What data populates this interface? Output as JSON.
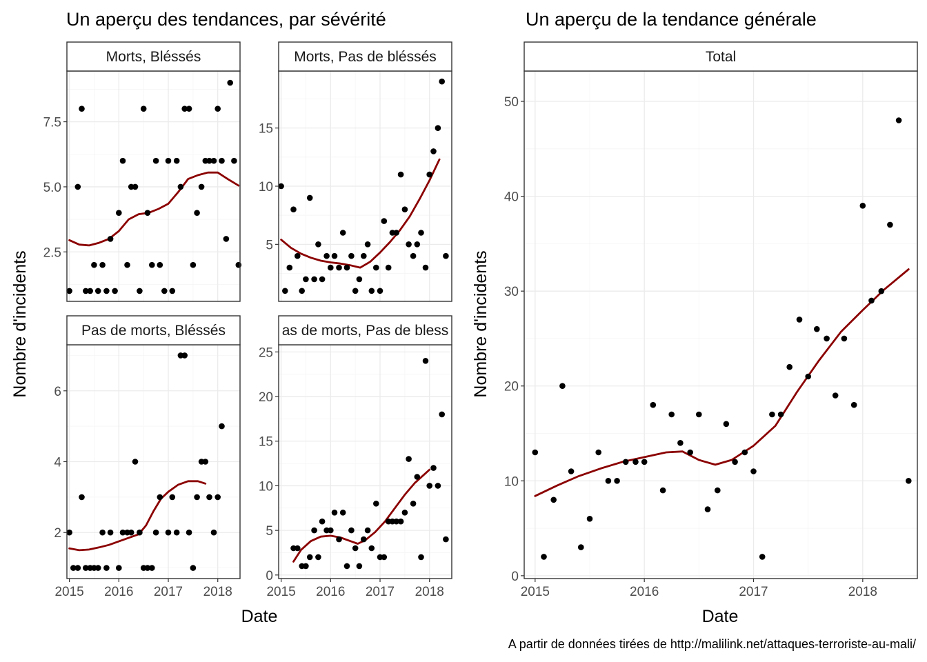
{
  "left_title": "Un aperçu des tendances, par sévérité",
  "right_title": "Un aperçu de la tendance générale",
  "left_xlabel": "Date",
  "left_ylabel": "Nombre d'incidents",
  "right_xlabel": "Date",
  "right_ylabel": "Nombre d'incidents",
  "caption": "A partir de données tirées de http://malilink.net/attaques-terroriste-au-mali/",
  "colors": {
    "points": "#000000",
    "trend": "#8b0000",
    "grid": "#ebebeb",
    "border": "#333333"
  },
  "chart_data": [
    {
      "type": "scatter",
      "facet": "Morts, Bléssés",
      "x_ticks": [
        "2015",
        "2016",
        "2017",
        "2018"
      ],
      "y_ticks": [
        2.5,
        5.0,
        7.5
      ],
      "y_tick_labels": [
        "2.5",
        "5.0",
        "7.5"
      ],
      "xlim": [
        2014.95,
        2018.45
      ],
      "ylim": [
        0.6,
        9.45
      ],
      "points": [
        [
          2015.0,
          1
        ],
        [
          2015.17,
          5
        ],
        [
          2015.25,
          8
        ],
        [
          2015.33,
          1
        ],
        [
          2015.42,
          1
        ],
        [
          2015.5,
          2
        ],
        [
          2015.58,
          1
        ],
        [
          2015.67,
          2
        ],
        [
          2015.75,
          1
        ],
        [
          2015.83,
          3
        ],
        [
          2015.92,
          1
        ],
        [
          2016.0,
          4
        ],
        [
          2016.08,
          6
        ],
        [
          2016.17,
          2
        ],
        [
          2016.25,
          5
        ],
        [
          2016.33,
          5
        ],
        [
          2016.42,
          1
        ],
        [
          2016.5,
          8
        ],
        [
          2016.58,
          4
        ],
        [
          2016.67,
          2
        ],
        [
          2016.75,
          6
        ],
        [
          2016.83,
          2
        ],
        [
          2016.92,
          1
        ],
        [
          2017.0,
          6
        ],
        [
          2017.08,
          1
        ],
        [
          2017.17,
          6
        ],
        [
          2017.25,
          5
        ],
        [
          2017.33,
          8
        ],
        [
          2017.42,
          8
        ],
        [
          2017.5,
          2
        ],
        [
          2017.58,
          4
        ],
        [
          2017.67,
          5
        ],
        [
          2017.75,
          6
        ],
        [
          2017.83,
          6
        ],
        [
          2017.92,
          6
        ],
        [
          2018.0,
          8
        ],
        [
          2018.08,
          6
        ],
        [
          2018.17,
          3
        ],
        [
          2018.25,
          9
        ],
        [
          2018.33,
          6
        ],
        [
          2018.42,
          2
        ]
      ],
      "trend": [
        [
          2015.0,
          2.95
        ],
        [
          2015.2,
          2.78
        ],
        [
          2015.4,
          2.75
        ],
        [
          2015.6,
          2.85
        ],
        [
          2015.8,
          3.0
        ],
        [
          2016.0,
          3.3
        ],
        [
          2016.2,
          3.75
        ],
        [
          2016.4,
          3.95
        ],
        [
          2016.6,
          4.0
        ],
        [
          2016.8,
          4.15
        ],
        [
          2017.0,
          4.35
        ],
        [
          2017.2,
          4.8
        ],
        [
          2017.4,
          5.3
        ],
        [
          2017.6,
          5.45
        ],
        [
          2017.8,
          5.55
        ],
        [
          2018.0,
          5.55
        ],
        [
          2018.2,
          5.3
        ],
        [
          2018.42,
          5.05
        ]
      ]
    },
    {
      "type": "scatter",
      "facet": "Morts, Pas de bléssés",
      "x_ticks": [
        "2015",
        "2016",
        "2017",
        "2018"
      ],
      "y_ticks": [
        5,
        10,
        15
      ],
      "y_tick_labels": [
        "5",
        "10",
        "15"
      ],
      "xlim": [
        2014.95,
        2018.45
      ],
      "ylim": [
        0.1,
        19.9
      ],
      "points": [
        [
          2015.0,
          10
        ],
        [
          2015.08,
          1
        ],
        [
          2015.17,
          3
        ],
        [
          2015.25,
          8
        ],
        [
          2015.33,
          4
        ],
        [
          2015.42,
          1
        ],
        [
          2015.5,
          2
        ],
        [
          2015.58,
          9
        ],
        [
          2015.67,
          2
        ],
        [
          2015.75,
          5
        ],
        [
          2015.83,
          2
        ],
        [
          2015.92,
          4
        ],
        [
          2016.0,
          3
        ],
        [
          2016.08,
          4
        ],
        [
          2016.17,
          3
        ],
        [
          2016.25,
          6
        ],
        [
          2016.33,
          3
        ],
        [
          2016.42,
          4
        ],
        [
          2016.5,
          1
        ],
        [
          2016.58,
          2
        ],
        [
          2016.67,
          4
        ],
        [
          2016.75,
          5
        ],
        [
          2016.83,
          1
        ],
        [
          2016.92,
          3
        ],
        [
          2017.0,
          1
        ],
        [
          2017.08,
          7
        ],
        [
          2017.17,
          3
        ],
        [
          2017.25,
          6
        ],
        [
          2017.33,
          6
        ],
        [
          2017.42,
          11
        ],
        [
          2017.5,
          8
        ],
        [
          2017.58,
          5
        ],
        [
          2017.67,
          4
        ],
        [
          2017.75,
          5
        ],
        [
          2017.83,
          6
        ],
        [
          2017.92,
          3
        ],
        [
          2018.0,
          11
        ],
        [
          2018.08,
          13
        ],
        [
          2018.17,
          15
        ],
        [
          2018.25,
          19
        ],
        [
          2018.33,
          4
        ]
      ],
      "trend": [
        [
          2015.0,
          5.4
        ],
        [
          2015.2,
          4.7
        ],
        [
          2015.4,
          4.2
        ],
        [
          2015.6,
          3.85
        ],
        [
          2015.8,
          3.6
        ],
        [
          2016.0,
          3.45
        ],
        [
          2016.2,
          3.35
        ],
        [
          2016.4,
          3.2
        ],
        [
          2016.6,
          3.0
        ],
        [
          2016.8,
          3.5
        ],
        [
          2017.0,
          4.3
        ],
        [
          2017.2,
          5.2
        ],
        [
          2017.4,
          6.2
        ],
        [
          2017.6,
          7.4
        ],
        [
          2017.8,
          8.9
        ],
        [
          2018.0,
          10.5
        ],
        [
          2018.2,
          12.3
        ]
      ]
    },
    {
      "type": "scatter",
      "facet": "Pas de morts, Bléssés",
      "x_ticks": [
        "2015",
        "2016",
        "2017",
        "2018"
      ],
      "y_ticks": [
        2,
        4,
        6
      ],
      "y_tick_labels": [
        "2",
        "4",
        "6"
      ],
      "xlim": [
        2014.95,
        2018.45
      ],
      "ylim": [
        0.7,
        7.3
      ],
      "points": [
        [
          2015.0,
          2
        ],
        [
          2015.08,
          1
        ],
        [
          2015.17,
          1
        ],
        [
          2015.25,
          3
        ],
        [
          2015.33,
          1
        ],
        [
          2015.42,
          1
        ],
        [
          2015.5,
          1
        ],
        [
          2015.58,
          1
        ],
        [
          2015.67,
          2
        ],
        [
          2015.75,
          1
        ],
        [
          2015.83,
          2
        ],
        [
          2016.0,
          1
        ],
        [
          2016.08,
          2
        ],
        [
          2016.17,
          2
        ],
        [
          2016.25,
          2
        ],
        [
          2016.33,
          4
        ],
        [
          2016.42,
          2
        ],
        [
          2016.5,
          1
        ],
        [
          2016.58,
          1
        ],
        [
          2016.67,
          1
        ],
        [
          2016.75,
          2
        ],
        [
          2016.83,
          3
        ],
        [
          2017.0,
          2
        ],
        [
          2017.08,
          3
        ],
        [
          2017.17,
          2
        ],
        [
          2017.25,
          7
        ],
        [
          2017.33,
          7
        ],
        [
          2017.42,
          2
        ],
        [
          2017.5,
          1
        ],
        [
          2017.58,
          3
        ],
        [
          2017.67,
          4
        ],
        [
          2017.75,
          4
        ],
        [
          2017.83,
          3
        ],
        [
          2017.92,
          2
        ],
        [
          2018.0,
          3
        ],
        [
          2018.08,
          5
        ]
      ],
      "trend": [
        [
          2015.0,
          1.55
        ],
        [
          2015.2,
          1.5
        ],
        [
          2015.4,
          1.52
        ],
        [
          2015.6,
          1.58
        ],
        [
          2015.8,
          1.65
        ],
        [
          2016.0,
          1.75
        ],
        [
          2016.2,
          1.85
        ],
        [
          2016.4,
          1.95
        ],
        [
          2016.55,
          2.2
        ],
        [
          2016.7,
          2.6
        ],
        [
          2016.85,
          2.95
        ],
        [
          2017.0,
          3.15
        ],
        [
          2017.2,
          3.35
        ],
        [
          2017.4,
          3.45
        ],
        [
          2017.6,
          3.45
        ],
        [
          2017.75,
          3.38
        ]
      ]
    },
    {
      "type": "scatter",
      "facet": "as de morts, Pas de bless",
      "x_ticks": [
        "2015",
        "2016",
        "2017",
        "2018"
      ],
      "y_ticks": [
        0,
        5,
        10,
        15,
        20,
        25
      ],
      "y_tick_labels": [
        "0",
        "5",
        "10",
        "15",
        "20",
        "25"
      ],
      "xlim": [
        2014.95,
        2018.45
      ],
      "ylim": [
        -0.4,
        25.8
      ],
      "points": [
        [
          2015.25,
          3
        ],
        [
          2015.33,
          3
        ],
        [
          2015.42,
          1
        ],
        [
          2015.5,
          1
        ],
        [
          2015.58,
          2
        ],
        [
          2015.67,
          5
        ],
        [
          2015.75,
          2
        ],
        [
          2015.83,
          6
        ],
        [
          2015.92,
          5
        ],
        [
          2016.0,
          5
        ],
        [
          2016.08,
          7
        ],
        [
          2016.17,
          4
        ],
        [
          2016.25,
          7
        ],
        [
          2016.33,
          1
        ],
        [
          2016.42,
          5
        ],
        [
          2016.5,
          3
        ],
        [
          2016.58,
          1
        ],
        [
          2016.67,
          4
        ],
        [
          2016.75,
          5
        ],
        [
          2016.83,
          3
        ],
        [
          2016.92,
          8
        ],
        [
          2017.0,
          2
        ],
        [
          2017.08,
          2
        ],
        [
          2017.17,
          6
        ],
        [
          2017.25,
          6
        ],
        [
          2017.33,
          6
        ],
        [
          2017.42,
          6
        ],
        [
          2017.5,
          7
        ],
        [
          2017.58,
          13
        ],
        [
          2017.67,
          8
        ],
        [
          2017.75,
          11
        ],
        [
          2017.83,
          2
        ],
        [
          2017.92,
          24
        ],
        [
          2018.0,
          10
        ],
        [
          2018.08,
          12
        ],
        [
          2018.17,
          10
        ],
        [
          2018.25,
          18
        ],
        [
          2018.33,
          4
        ]
      ],
      "trend": [
        [
          2015.25,
          1.5
        ],
        [
          2015.4,
          2.8
        ],
        [
          2015.6,
          3.8
        ],
        [
          2015.8,
          4.3
        ],
        [
          2016.0,
          4.4
        ],
        [
          2016.2,
          4.2
        ],
        [
          2016.4,
          3.8
        ],
        [
          2016.55,
          3.5
        ],
        [
          2016.7,
          3.9
        ],
        [
          2016.9,
          4.8
        ],
        [
          2017.1,
          6.0
        ],
        [
          2017.3,
          7.5
        ],
        [
          2017.5,
          9.0
        ],
        [
          2017.7,
          10.3
        ],
        [
          2017.9,
          11.3
        ],
        [
          2018.0,
          11.8
        ]
      ]
    },
    {
      "type": "scatter",
      "facet": "Total",
      "x_ticks": [
        "2015",
        "2016",
        "2017",
        "2018"
      ],
      "y_ticks": [
        0,
        10,
        20,
        30,
        40,
        50
      ],
      "y_tick_labels": [
        "0",
        "10",
        "20",
        "30",
        "40",
        "50"
      ],
      "xlim": [
        2014.9,
        2018.5
      ],
      "ylim": [
        -0.3,
        53.2
      ],
      "points": [
        [
          2015.0,
          13
        ],
        [
          2015.08,
          2
        ],
        [
          2015.17,
          8
        ],
        [
          2015.25,
          20
        ],
        [
          2015.33,
          11
        ],
        [
          2015.42,
          3
        ],
        [
          2015.5,
          6
        ],
        [
          2015.58,
          13
        ],
        [
          2015.67,
          10
        ],
        [
          2015.75,
          10
        ],
        [
          2015.83,
          12
        ],
        [
          2015.92,
          12
        ],
        [
          2016.0,
          12
        ],
        [
          2016.08,
          18
        ],
        [
          2016.17,
          9
        ],
        [
          2016.25,
          17
        ],
        [
          2016.33,
          14
        ],
        [
          2016.42,
          13
        ],
        [
          2016.5,
          17
        ],
        [
          2016.58,
          7
        ],
        [
          2016.67,
          9
        ],
        [
          2016.75,
          16
        ],
        [
          2016.83,
          12
        ],
        [
          2016.92,
          13
        ],
        [
          2017.0,
          11
        ],
        [
          2017.08,
          2
        ],
        [
          2017.17,
          17
        ],
        [
          2017.25,
          17
        ],
        [
          2017.33,
          22
        ],
        [
          2017.42,
          27
        ],
        [
          2017.5,
          21
        ],
        [
          2017.58,
          26
        ],
        [
          2017.67,
          25
        ],
        [
          2017.75,
          19
        ],
        [
          2017.83,
          25
        ],
        [
          2017.92,
          18
        ],
        [
          2018.0,
          39
        ],
        [
          2018.08,
          29
        ],
        [
          2018.17,
          30
        ],
        [
          2018.25,
          37
        ],
        [
          2018.33,
          48
        ],
        [
          2018.42,
          10
        ]
      ],
      "trend": [
        [
          2015.0,
          8.4
        ],
        [
          2015.2,
          9.5
        ],
        [
          2015.4,
          10.5
        ],
        [
          2015.6,
          11.3
        ],
        [
          2015.8,
          12.0
        ],
        [
          2016.0,
          12.5
        ],
        [
          2016.2,
          13.0
        ],
        [
          2016.35,
          13.1
        ],
        [
          2016.5,
          12.2
        ],
        [
          2016.65,
          11.7
        ],
        [
          2016.8,
          12.2
        ],
        [
          2017.0,
          13.7
        ],
        [
          2017.2,
          15.8
        ],
        [
          2017.4,
          19.4
        ],
        [
          2017.6,
          22.7
        ],
        [
          2017.8,
          25.7
        ],
        [
          2018.0,
          28.0
        ],
        [
          2018.2,
          30.2
        ],
        [
          2018.42,
          32.3
        ]
      ]
    }
  ]
}
